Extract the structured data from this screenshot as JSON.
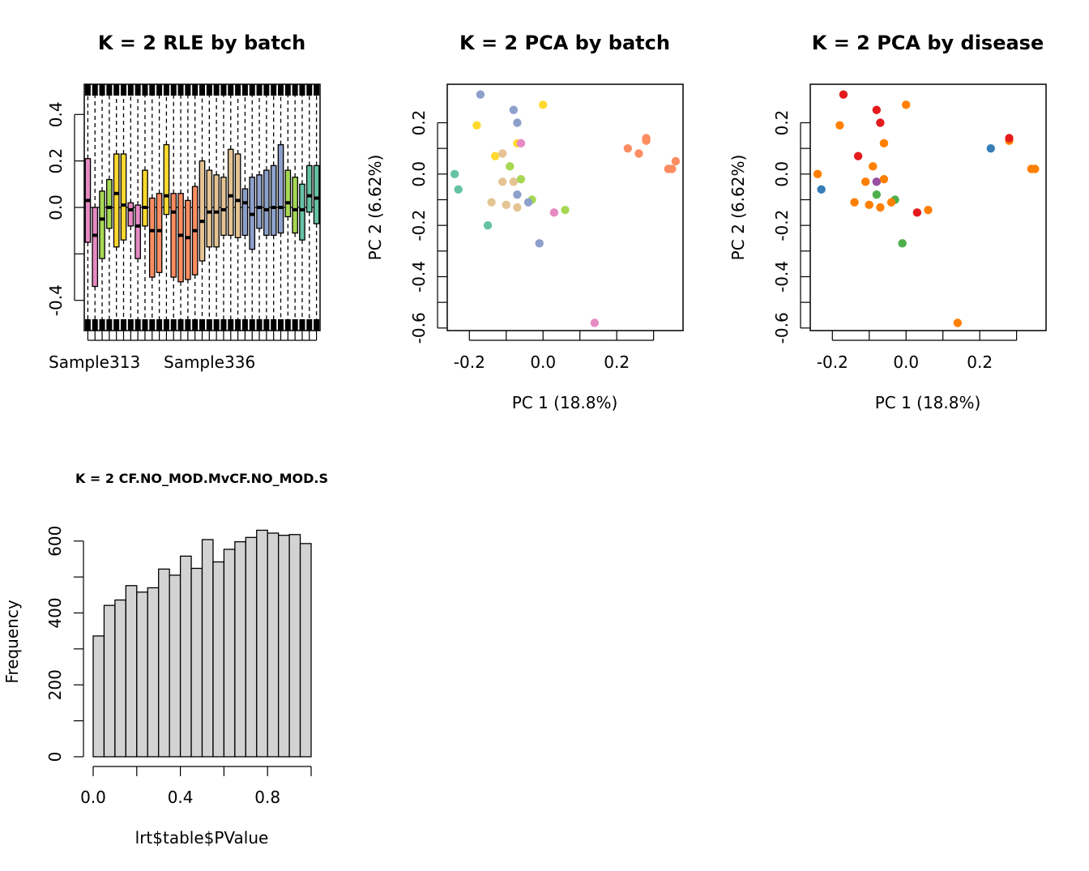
{
  "chart_data": [
    {
      "id": "rle",
      "type": "box",
      "title": "K = 2 RLE by batch",
      "xlabel": "",
      "ylabel": "",
      "ylim": [
        -0.53,
        0.53
      ],
      "yticks": [
        "-0.4",
        "0.0",
        "0.2",
        "0.4"
      ],
      "xtick_labels": [
        "Sample313",
        "Sample336"
      ],
      "grid": false,
      "boxes": [
        {
          "color": "#E78AC3",
          "median": 0.03,
          "q1": -0.15,
          "q3": 0.21,
          "lo": -0.53,
          "hi": 0.53
        },
        {
          "color": "#E78AC3",
          "median": -0.12,
          "q1": -0.34,
          "q3": 0.0,
          "lo": -0.53,
          "hi": 0.53
        },
        {
          "color": "#A6D854",
          "median": -0.05,
          "q1": -0.22,
          "q3": 0.07,
          "lo": -0.53,
          "hi": 0.53
        },
        {
          "color": "#A6D854",
          "median": 0.0,
          "q1": -0.09,
          "q3": 0.12,
          "lo": -0.53,
          "hi": 0.53
        },
        {
          "color": "#FFD92F",
          "median": 0.06,
          "q1": -0.17,
          "q3": 0.23,
          "lo": -0.53,
          "hi": 0.53
        },
        {
          "color": "#FFD92F",
          "median": 0.01,
          "q1": -0.14,
          "q3": 0.23,
          "lo": -0.53,
          "hi": 0.53
        },
        {
          "color": "#E78AC3",
          "median": -0.01,
          "q1": -0.08,
          "q3": 0.02,
          "lo": -0.53,
          "hi": 0.53
        },
        {
          "color": "#E78AC3",
          "median": -0.08,
          "q1": -0.22,
          "q3": 0.01,
          "lo": -0.53,
          "hi": 0.53
        },
        {
          "color": "#FFD92F",
          "median": 0.0,
          "q1": -0.08,
          "q3": 0.16,
          "lo": -0.53,
          "hi": 0.53
        },
        {
          "color": "#FC8D62",
          "median": -0.1,
          "q1": -0.3,
          "q3": 0.04,
          "lo": -0.53,
          "hi": 0.53
        },
        {
          "color": "#FC8D62",
          "median": -0.1,
          "q1": -0.28,
          "q3": 0.06,
          "lo": -0.53,
          "hi": 0.53
        },
        {
          "color": "#FFD92F",
          "median": 0.05,
          "q1": -0.03,
          "q3": 0.27,
          "lo": -0.53,
          "hi": 0.53
        },
        {
          "color": "#FC8D62",
          "median": -0.02,
          "q1": -0.3,
          "q3": 0.06,
          "lo": -0.53,
          "hi": 0.53
        },
        {
          "color": "#FC8D62",
          "median": -0.12,
          "q1": -0.32,
          "q3": 0.06,
          "lo": -0.53,
          "hi": 0.53
        },
        {
          "color": "#FC8D62",
          "median": -0.13,
          "q1": -0.31,
          "q3": 0.03,
          "lo": -0.53,
          "hi": 0.53
        },
        {
          "color": "#FC8D62",
          "median": -0.1,
          "q1": -0.29,
          "q3": 0.09,
          "lo": -0.53,
          "hi": 0.53
        },
        {
          "color": "#E5C494",
          "median": -0.06,
          "q1": -0.23,
          "q3": 0.2,
          "lo": -0.53,
          "hi": 0.53
        },
        {
          "color": "#E5C494",
          "median": -0.02,
          "q1": -0.17,
          "q3": 0.16,
          "lo": -0.53,
          "hi": 0.53
        },
        {
          "color": "#E5C494",
          "median": -0.02,
          "q1": -0.17,
          "q3": 0.14,
          "lo": -0.53,
          "hi": 0.53
        },
        {
          "color": "#E5C494",
          "median": -0.01,
          "q1": -0.12,
          "q3": 0.13,
          "lo": -0.53,
          "hi": 0.53
        },
        {
          "color": "#E5C494",
          "median": 0.05,
          "q1": -0.12,
          "q3": 0.25,
          "lo": -0.53,
          "hi": 0.53
        },
        {
          "color": "#E5C494",
          "median": 0.03,
          "q1": -0.13,
          "q3": 0.23,
          "lo": -0.53,
          "hi": 0.53
        },
        {
          "color": "#8DA0CB",
          "median": 0.02,
          "q1": -0.12,
          "q3": 0.08,
          "lo": -0.53,
          "hi": 0.53
        },
        {
          "color": "#8DA0CB",
          "median": -0.03,
          "q1": -0.18,
          "q3": 0.13,
          "lo": -0.53,
          "hi": 0.53
        },
        {
          "color": "#8DA0CB",
          "median": 0.0,
          "q1": -0.09,
          "q3": 0.14,
          "lo": -0.53,
          "hi": 0.53
        },
        {
          "color": "#8DA0CB",
          "median": -0.01,
          "q1": -0.12,
          "q3": 0.16,
          "lo": -0.53,
          "hi": 0.53
        },
        {
          "color": "#8DA0CB",
          "median": 0.0,
          "q1": -0.12,
          "q3": 0.18,
          "lo": -0.53,
          "hi": 0.53
        },
        {
          "color": "#8DA0CB",
          "median": 0.0,
          "q1": -0.11,
          "q3": 0.27,
          "lo": -0.53,
          "hi": 0.53
        },
        {
          "color": "#A6D854",
          "median": 0.02,
          "q1": -0.04,
          "q3": 0.16,
          "lo": -0.53,
          "hi": 0.53
        },
        {
          "color": "#A6D854",
          "median": -0.01,
          "q1": -0.11,
          "q3": 0.13,
          "lo": -0.53,
          "hi": 0.53
        },
        {
          "color": "#66C2A5",
          "median": -0.01,
          "q1": -0.14,
          "q3": 0.1,
          "lo": -0.53,
          "hi": 0.53
        },
        {
          "color": "#66C2A5",
          "median": 0.05,
          "q1": -0.02,
          "q3": 0.18,
          "lo": -0.53,
          "hi": 0.53
        },
        {
          "color": "#66C2A5",
          "median": 0.04,
          "q1": -0.07,
          "q3": 0.18,
          "lo": -0.53,
          "hi": 0.53
        }
      ]
    },
    {
      "id": "pca_batch",
      "type": "scatter",
      "title": "K = 2 PCA by batch",
      "xlabel": "PC 1 (18.8%)",
      "ylabel": "PC 2 (6.62%)",
      "xlim": [
        -0.26,
        0.38
      ],
      "ylim": [
        -0.61,
        0.35
      ],
      "xticks": [
        "-0.2",
        "0.0",
        "0.2"
      ],
      "yticks": [
        "-0.6",
        "-0.4",
        "-0.2",
        "0.0",
        "0.2"
      ],
      "points": [
        {
          "x": -0.17,
          "y": 0.31,
          "color": "#8DA0CB"
        },
        {
          "x": -0.08,
          "y": 0.25,
          "color": "#8DA0CB"
        },
        {
          "x": -0.07,
          "y": 0.2,
          "color": "#8DA0CB"
        },
        {
          "x": 0.0,
          "y": 0.27,
          "color": "#FFD92F"
        },
        {
          "x": -0.18,
          "y": 0.19,
          "color": "#FFD92F"
        },
        {
          "x": -0.07,
          "y": 0.12,
          "color": "#FFD92F"
        },
        {
          "x": -0.06,
          "y": 0.12,
          "color": "#E78AC3"
        },
        {
          "x": -0.13,
          "y": 0.07,
          "color": "#FFD92F"
        },
        {
          "x": -0.11,
          "y": 0.08,
          "color": "#E5C494"
        },
        {
          "x": -0.09,
          "y": 0.03,
          "color": "#A6D854"
        },
        {
          "x": -0.24,
          "y": 0.0,
          "color": "#66C2A5"
        },
        {
          "x": -0.23,
          "y": -0.06,
          "color": "#66C2A5"
        },
        {
          "x": -0.11,
          "y": -0.03,
          "color": "#E5C494"
        },
        {
          "x": -0.08,
          "y": -0.03,
          "color": "#E5C494"
        },
        {
          "x": -0.06,
          "y": -0.02,
          "color": "#A6D854"
        },
        {
          "x": -0.07,
          "y": -0.08,
          "color": "#8DA0CB"
        },
        {
          "x": -0.03,
          "y": -0.1,
          "color": "#A6D854"
        },
        {
          "x": -0.04,
          "y": -0.11,
          "color": "#8DA0CB"
        },
        {
          "x": -0.14,
          "y": -0.11,
          "color": "#E5C494"
        },
        {
          "x": -0.1,
          "y": -0.12,
          "color": "#E5C494"
        },
        {
          "x": -0.07,
          "y": -0.13,
          "color": "#E5C494"
        },
        {
          "x": 0.03,
          "y": -0.15,
          "color": "#E78AC3"
        },
        {
          "x": 0.06,
          "y": -0.14,
          "color": "#A6D854"
        },
        {
          "x": -0.15,
          "y": -0.2,
          "color": "#66C2A5"
        },
        {
          "x": -0.01,
          "y": -0.27,
          "color": "#8DA0CB"
        },
        {
          "x": 0.14,
          "y": -0.58,
          "color": "#E78AC3"
        },
        {
          "x": 0.23,
          "y": 0.1,
          "color": "#FC8D62"
        },
        {
          "x": 0.26,
          "y": 0.08,
          "color": "#FC8D62"
        },
        {
          "x": 0.28,
          "y": 0.14,
          "color": "#FC8D62"
        },
        {
          "x": 0.28,
          "y": 0.13,
          "color": "#FC8D62"
        },
        {
          "x": 0.34,
          "y": 0.02,
          "color": "#FC8D62"
        },
        {
          "x": 0.35,
          "y": 0.02,
          "color": "#FC8D62"
        },
        {
          "x": 0.36,
          "y": 0.05,
          "color": "#FC8D62"
        }
      ]
    },
    {
      "id": "pca_disease",
      "type": "scatter",
      "title": "K = 2 PCA by disease",
      "xlabel": "PC 1 (18.8%)",
      "ylabel": "PC 2 (6.62%)",
      "xlim": [
        -0.26,
        0.38
      ],
      "ylim": [
        -0.61,
        0.35
      ],
      "xticks": [
        "-0.2",
        "0.0",
        "0.2"
      ],
      "yticks": [
        "-0.6",
        "-0.4",
        "-0.2",
        "0.0",
        "0.2"
      ],
      "points": [
        {
          "x": -0.17,
          "y": 0.31,
          "color": "#E41A1C"
        },
        {
          "x": -0.08,
          "y": 0.25,
          "color": "#E41A1C"
        },
        {
          "x": -0.07,
          "y": 0.2,
          "color": "#E41A1C"
        },
        {
          "x": 0.0,
          "y": 0.27,
          "color": "#FF7F00"
        },
        {
          "x": -0.18,
          "y": 0.19,
          "color": "#FF7F00"
        },
        {
          "x": -0.06,
          "y": 0.12,
          "color": "#FF7F00"
        },
        {
          "x": -0.13,
          "y": 0.07,
          "color": "#E41A1C"
        },
        {
          "x": -0.09,
          "y": 0.03,
          "color": "#FF7F00"
        },
        {
          "x": -0.24,
          "y": 0.0,
          "color": "#FF7F00"
        },
        {
          "x": -0.23,
          "y": -0.06,
          "color": "#377EB8"
        },
        {
          "x": -0.11,
          "y": -0.03,
          "color": "#FF7F00"
        },
        {
          "x": -0.08,
          "y": -0.03,
          "color": "#984EA3"
        },
        {
          "x": -0.06,
          "y": -0.02,
          "color": "#FF7F00"
        },
        {
          "x": -0.08,
          "y": -0.08,
          "color": "#4DAF4A"
        },
        {
          "x": -0.03,
          "y": -0.1,
          "color": "#4DAF4A"
        },
        {
          "x": -0.04,
          "y": -0.11,
          "color": "#FF7F00"
        },
        {
          "x": -0.14,
          "y": -0.11,
          "color": "#FF7F00"
        },
        {
          "x": -0.1,
          "y": -0.12,
          "color": "#FF7F00"
        },
        {
          "x": -0.07,
          "y": -0.13,
          "color": "#FF7F00"
        },
        {
          "x": 0.03,
          "y": -0.15,
          "color": "#E41A1C"
        },
        {
          "x": 0.06,
          "y": -0.14,
          "color": "#FF7F00"
        },
        {
          "x": -0.01,
          "y": -0.27,
          "color": "#4DAF4A"
        },
        {
          "x": 0.14,
          "y": -0.58,
          "color": "#FF7F00"
        },
        {
          "x": 0.23,
          "y": 0.1,
          "color": "#377EB8"
        },
        {
          "x": 0.28,
          "y": 0.13,
          "color": "#FF7F00"
        },
        {
          "x": 0.28,
          "y": 0.14,
          "color": "#E41A1C"
        },
        {
          "x": 0.34,
          "y": 0.02,
          "color": "#FF7F00"
        },
        {
          "x": 0.35,
          "y": 0.02,
          "color": "#FF7F00"
        }
      ]
    },
    {
      "id": "hist",
      "type": "bar",
      "title": "K = 2 CF.NO_MOD.MvCF.NO_MOD.S",
      "xlabel": "lrt$table$PValue",
      "ylabel": "Frequency",
      "xlim": [
        0,
        1
      ],
      "ylim": [
        0,
        630
      ],
      "xticks": [
        "0.0",
        "0.4",
        "0.8"
      ],
      "yticks": [
        "0",
        "200",
        "400",
        "600"
      ],
      "bin_width": 0.05,
      "bar_color": "#D3D3D3",
      "values": [
        336,
        421,
        436,
        476,
        458,
        470,
        522,
        505,
        558,
        524,
        604,
        542,
        577,
        598,
        610,
        630,
        622,
        616,
        618,
        593
      ]
    }
  ]
}
